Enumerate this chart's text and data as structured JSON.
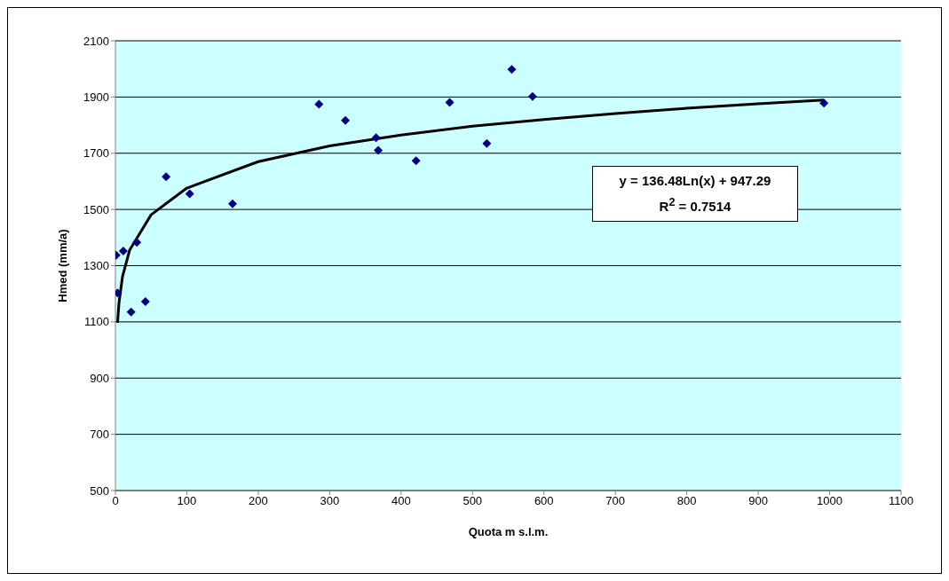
{
  "chart_data": {
    "type": "scatter",
    "xlabel": "Quota m s.l.m.",
    "ylabel": "Hmed (mm/a)",
    "series": [
      {
        "color": "#000080",
        "marker": "diamond",
        "x": [
          1,
          3,
          11,
          22,
          30,
          42,
          71,
          104,
          164,
          285,
          322,
          365,
          368,
          421,
          468,
          520,
          555,
          584,
          992
        ],
        "values": [
          1337,
          1203,
          1352,
          1135,
          1383,
          1172,
          1616,
          1556,
          1520,
          1874,
          1817,
          1755,
          1710,
          1673,
          1881,
          1735,
          1998,
          1902,
          1878
        ]
      },
      {
        "type": "line",
        "color": "#000000",
        "marker": "none",
        "x": [
          3,
          5,
          10,
          20,
          50,
          100,
          200,
          300,
          400,
          500,
          600,
          700,
          800,
          900,
          992
        ],
        "values": [
          1097,
          1167,
          1262,
          1356,
          1481,
          1576,
          1670,
          1726,
          1765,
          1796,
          1820,
          1841,
          1860,
          1876,
          1889
        ]
      }
    ],
    "annotations": [
      "y = 136.48Ln(x) + 947.29",
      "R$^{2}$ = 0.7514"
    ],
    "xlim": [
      0,
      1100
    ],
    "xticks": [
      0,
      100,
      200,
      300,
      400,
      500,
      600,
      700,
      800,
      900,
      1000,
      1100
    ],
    "ylim": [
      500,
      2100
    ],
    "yticks": [
      500,
      700,
      900,
      1100,
      1300,
      1500,
      1700,
      1900,
      2100
    ],
    "grid": "y",
    "legend": false
  }
}
